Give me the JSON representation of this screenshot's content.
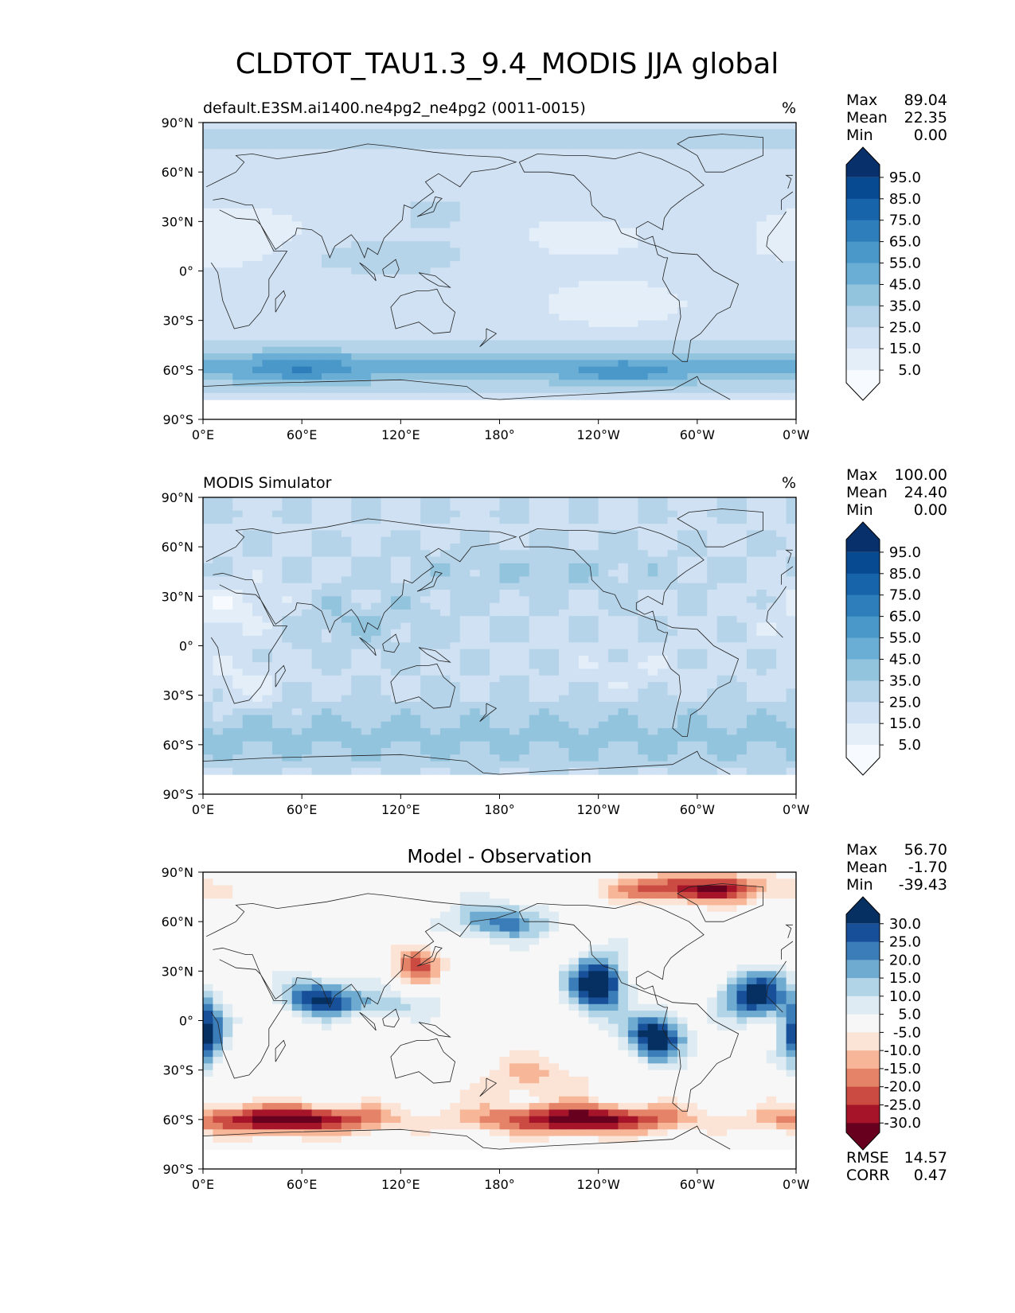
{
  "figure": {
    "title": "CLDTOT_TAU1.3_9.4_MODIS JJA global"
  },
  "axes": {
    "lon_ticks": [
      "0°E",
      "60°E",
      "120°E",
      "180°",
      "120°W",
      "60°W",
      "0°W"
    ],
    "lat_ticks": [
      "90°N",
      "60°N",
      "30°N",
      "0°",
      "30°S",
      "60°S",
      "90°S"
    ]
  },
  "colors": {
    "seq_scale": [
      "#f7fbff",
      "#e3eef9",
      "#cfe1f2",
      "#b5d4e9",
      "#93c4de",
      "#6aaed6",
      "#4a98c9",
      "#2e7ebc",
      "#1764ab",
      "#084a91",
      "#08306b"
    ],
    "div_scale": [
      "#67001f",
      "#a51429",
      "#cb4b43",
      "#e58368",
      "#f7b698",
      "#fbe3d5",
      "#f7f7f7",
      "#deebf2",
      "#b1d5e7",
      "#6fabd0",
      "#3b7db9",
      "#175099",
      "#053061"
    ],
    "coast": "#222222"
  },
  "chart_data": [
    {
      "type": "heatmap",
      "panel_title": "default.E3SM.ai1400.ne4pg2_ne4pg2 (0011-0015)",
      "units": "%",
      "stats": {
        "labels": [
          "Max",
          "Mean",
          "Min"
        ],
        "values": [
          "89.04",
          "22.35",
          "0.00"
        ]
      },
      "colorbar": {
        "ticks": [
          "95.0",
          "85.0",
          "75.0",
          "65.0",
          "55.0",
          "45.0",
          "35.0",
          "25.0",
          "15.0",
          "5.0"
        ],
        "levels": [
          0,
          5,
          15,
          25,
          35,
          45,
          55,
          65,
          75,
          85,
          95,
          100
        ],
        "scale": "seq"
      },
      "field": "model",
      "xlim": [
        0,
        360
      ],
      "ylim": [
        -90,
        90
      ]
    },
    {
      "type": "heatmap",
      "panel_title": "MODIS Simulator",
      "units": "%",
      "stats": {
        "labels": [
          "Max",
          "Mean",
          "Min"
        ],
        "values": [
          "100.00",
          "24.40",
          "0.00"
        ]
      },
      "colorbar": {
        "ticks": [
          "95.0",
          "85.0",
          "75.0",
          "65.0",
          "55.0",
          "45.0",
          "35.0",
          "25.0",
          "15.0",
          "5.0"
        ],
        "levels": [
          0,
          5,
          15,
          25,
          35,
          45,
          55,
          65,
          75,
          85,
          95,
          100
        ],
        "scale": "seq"
      },
      "field": "obs",
      "xlim": [
        0,
        360
      ],
      "ylim": [
        -90,
        90
      ]
    },
    {
      "type": "heatmap",
      "panel_title": "Model - Observation",
      "units": "",
      "stats": {
        "labels": [
          "Max",
          "Mean",
          "Min"
        ],
        "values": [
          "56.70",
          "-1.70",
          "-39.43"
        ]
      },
      "colorbar": {
        "ticks": [
          "30.0",
          "25.0",
          "20.0",
          "15.0",
          "10.0",
          "5.0",
          "-5.0",
          "-10.0",
          "-15.0",
          "-20.0",
          "-25.0",
          "-30.0"
        ],
        "levels": [
          -35,
          -30,
          -25,
          -20,
          -15,
          -10,
          -5,
          5,
          10,
          15,
          20,
          25,
          30,
          35
        ],
        "scale": "div"
      },
      "field": "diff",
      "metrics": {
        "labels": [
          "RMSE",
          "CORR"
        ],
        "values": [
          "14.57",
          "0.47"
        ]
      },
      "xlim": [
        0,
        360
      ],
      "ylim": [
        -90,
        90
      ]
    }
  ]
}
